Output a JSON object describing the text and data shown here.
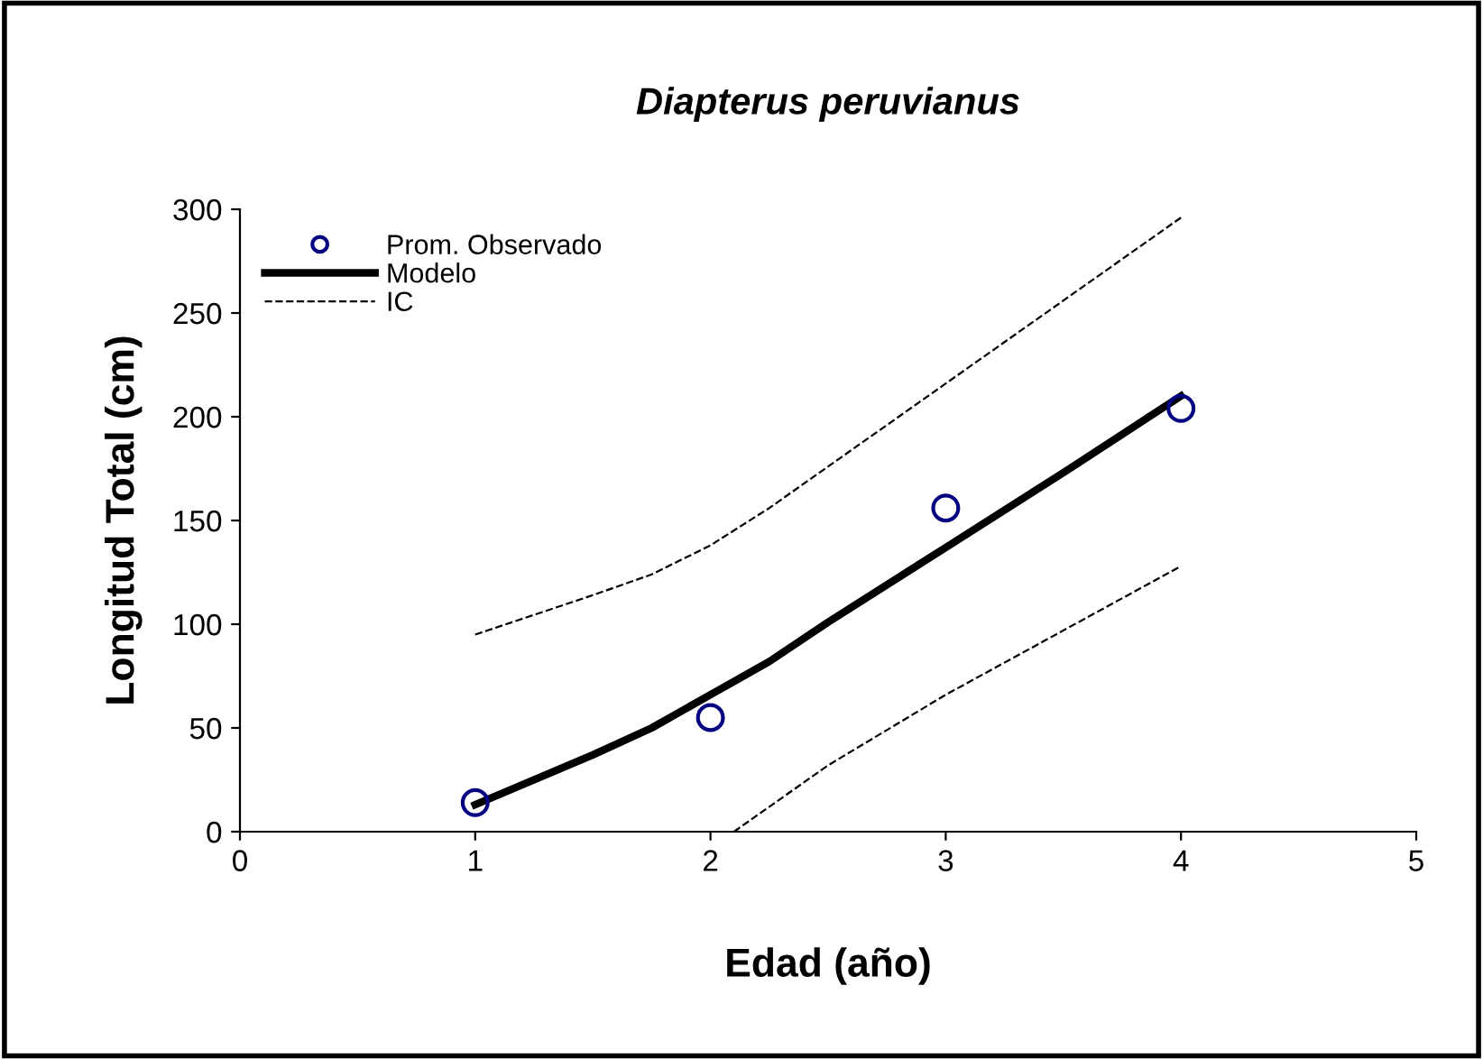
{
  "chart_data": {
    "type": "line",
    "title": "Diapterus peruvianus",
    "xlabel": "Edad (año)",
    "ylabel": "Longitud Total (cm)",
    "xlim": [
      0,
      5
    ],
    "xticks": [
      0,
      1,
      2,
      3,
      4,
      5
    ],
    "ylim": [
      0,
      300
    ],
    "yticks": [
      0,
      50,
      100,
      150,
      200,
      250,
      300
    ],
    "grid": false,
    "legend": "top left",
    "series": [
      {
        "name": "Prom. Observado",
        "type": "scatter",
        "color": "#000080",
        "marker": "circle",
        "x": [
          1,
          2,
          3,
          4
        ],
        "values": [
          14,
          55,
          156,
          204
        ]
      },
      {
        "name": "Modelo",
        "type": "line",
        "color": "#000000",
        "line_style": "solid",
        "x": [
          1,
          1.5,
          1.75,
          2,
          2.25,
          2.5,
          3,
          3.5,
          4
        ],
        "values": [
          13,
          37,
          50,
          66,
          82,
          101,
          137,
          173,
          210
        ]
      },
      {
        "name": "IC",
        "type": "line",
        "color": "#000000",
        "line_style": "dashed",
        "x": [
          1,
          1.5,
          1.75,
          2,
          2.25,
          2.5,
          3,
          3.5,
          4
        ],
        "values": [
          95,
          114,
          124,
          138,
          156,
          176,
          216,
          256,
          296
        ]
      },
      {
        "type": "line",
        "color": "#000000",
        "line_style": "dashed",
        "x": [
          2.1,
          2.5,
          3,
          3.5,
          4
        ],
        "values": [
          0,
          32,
          66,
          97,
          128
        ]
      }
    ]
  }
}
